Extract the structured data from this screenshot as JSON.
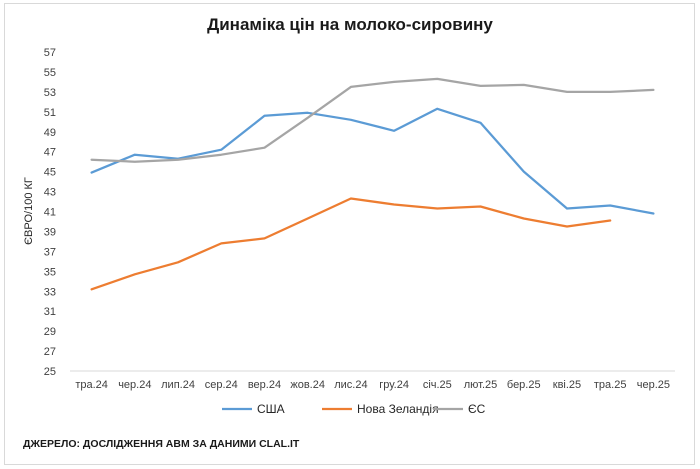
{
  "chart_data": {
    "type": "line",
    "title": "Динаміка цін на молоко-сировину",
    "ylabel": "ЄВРО/100 КГ",
    "xlabel": "",
    "ylim": [
      25,
      57
    ],
    "yticks": [
      25,
      27,
      29,
      31,
      33,
      35,
      37,
      39,
      41,
      43,
      45,
      47,
      49,
      51,
      53,
      55,
      57
    ],
    "grid": false,
    "legend_position": "bottom",
    "categories": [
      "тра.24",
      "чер.24",
      "лип.24",
      "сер.24",
      "вер.24",
      "жов.24",
      "лис.24",
      "гру.24",
      "січ.25",
      "лют.25",
      "бер.25",
      "кві.25",
      "тра.25",
      "чер.25"
    ],
    "series": [
      {
        "name": "США",
        "color": "#5b9bd5",
        "values": [
          44.9,
          46.7,
          46.3,
          47.2,
          50.6,
          50.9,
          50.2,
          49.1,
          51.3,
          49.9,
          45.0,
          41.3,
          41.6,
          40.8
        ]
      },
      {
        "name": "Нова Зеландія",
        "color": "#ed7d31",
        "values": [
          33.2,
          34.7,
          35.9,
          37.8,
          38.3,
          40.3,
          42.3,
          41.7,
          41.3,
          41.5,
          40.3,
          39.5,
          40.1,
          null
        ]
      },
      {
        "name": "ЄС",
        "color": "#a5a5a5",
        "values": [
          46.2,
          46.0,
          46.2,
          46.7,
          47.4,
          50.4,
          53.5,
          54.0,
          54.3,
          53.6,
          53.7,
          53.0,
          53.0,
          53.2
        ]
      }
    ]
  },
  "source_note": "ДЖЕРЕЛО: ДОСЛІДЖЕННЯ АВМ ЗА ДАНИМИ CLAL.IT"
}
